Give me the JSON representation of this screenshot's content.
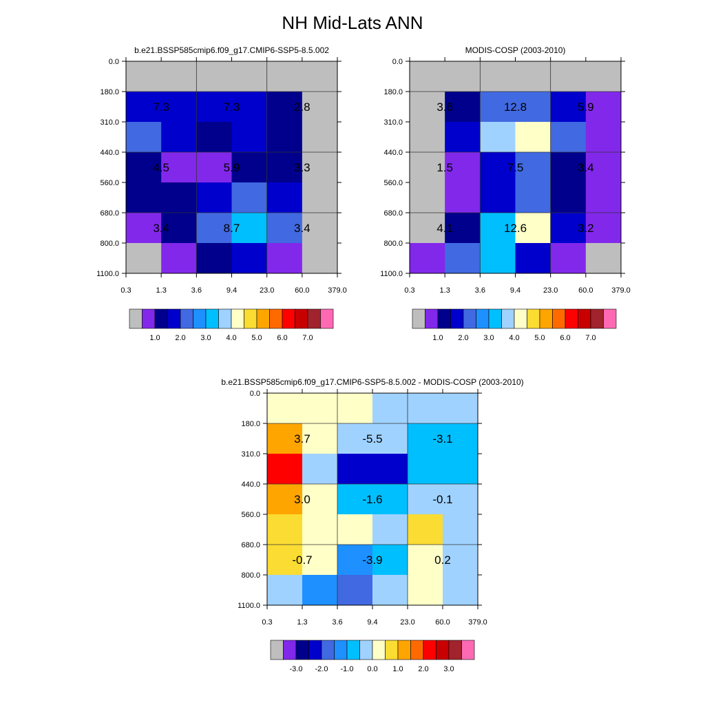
{
  "title": "NH Mid-Lats ANN",
  "palettes": {
    "abs": [
      "#bebebe",
      "#8228eb",
      "#00008c",
      "#0000cd",
      "#4169e1",
      "#1e90ff",
      "#00bfff",
      "#a0d2ff",
      "#ffffc8",
      "#fadc32",
      "#ffa500",
      "#ff6a00",
      "#ff0000",
      "#c80000",
      "#a0232d",
      "#ff69b4"
    ],
    "diff": [
      "#bebebe",
      "#8228eb",
      "#00008c",
      "#0000cd",
      "#4169e1",
      "#1e90ff",
      "#00bfff",
      "#a0d2ff",
      "#ffffc8",
      "#fadc32",
      "#ffa500",
      "#ff6a00",
      "#ff0000",
      "#c80000",
      "#a0232d",
      "#ff69b4"
    ]
  },
  "panels": [
    {
      "id": "model",
      "title": "b.e21.BSSP585cmip6.f09_g17.CMIP6-SSP5-8.5.002",
      "x_ticks": [
        "0.3",
        "1.3",
        "3.6",
        "9.4",
        "23.0",
        "60.0",
        "379.0"
      ],
      "y_ticks": [
        "0.0",
        "180.0",
        "310.0",
        "440.0",
        "560.0",
        "680.0",
        "800.0",
        "1100.0"
      ],
      "colorbar_labels": [
        "1.0",
        "2.0",
        "3.0",
        "4.0",
        "5.0",
        "6.0",
        "7.0"
      ],
      "palette": "abs",
      "grid_colors": [
        [
          0,
          0,
          0,
          0,
          0,
          0
        ],
        [
          3,
          3,
          3,
          3,
          2,
          0
        ],
        [
          4,
          3,
          2,
          3,
          2,
          0
        ],
        [
          2,
          1,
          1,
          2,
          2,
          0
        ],
        [
          2,
          2,
          3,
          4,
          3,
          0
        ],
        [
          1,
          2,
          4,
          6,
          4,
          0
        ],
        [
          0,
          1,
          2,
          3,
          1,
          0
        ]
      ],
      "block_values": [
        [
          "7.3",
          "7.3",
          "2.8"
        ],
        [
          "4.5",
          "5.9",
          "3.3"
        ],
        [
          "3.4",
          "8.7",
          "3.4"
        ]
      ]
    },
    {
      "id": "obs",
      "title": "MODIS-COSP (2003-2010)",
      "x_ticks": [
        "0.3",
        "1.3",
        "3.6",
        "9.4",
        "23.0",
        "60.0",
        "379.0"
      ],
      "y_ticks": [
        "0.0",
        "180.0",
        "310.0",
        "440.0",
        "560.0",
        "680.0",
        "800.0",
        "1100.0"
      ],
      "colorbar_labels": [
        "1.0",
        "2.0",
        "3.0",
        "4.0",
        "5.0",
        "6.0",
        "7.0"
      ],
      "palette": "abs",
      "grid_colors": [
        [
          0,
          0,
          0,
          0,
          0,
          0
        ],
        [
          0,
          2,
          4,
          4,
          3,
          1
        ],
        [
          0,
          3,
          7,
          8,
          4,
          1
        ],
        [
          0,
          1,
          3,
          4,
          2,
          1
        ],
        [
          0,
          1,
          3,
          4,
          2,
          1
        ],
        [
          0,
          2,
          6,
          8,
          3,
          1
        ],
        [
          1,
          4,
          6,
          3,
          1,
          0
        ]
      ],
      "block_values": [
        [
          "3.6",
          "12.8",
          "5.9"
        ],
        [
          "1.5",
          "7.5",
          "3.4"
        ],
        [
          "4.1",
          "12.6",
          "3.2"
        ]
      ]
    },
    {
      "id": "diff",
      "title": "b.e21.BSSP585cmip6.f09_g17.CMIP6-SSP5-8.5.002 - MODIS-COSP (2003-2010)",
      "x_ticks": [
        "0.3",
        "1.3",
        "3.6",
        "9.4",
        "23.0",
        "60.0",
        "379.0"
      ],
      "y_ticks": [
        "0.0",
        "180.0",
        "310.0",
        "440.0",
        "560.0",
        "680.0",
        "800.0",
        "1100.0"
      ],
      "colorbar_labels": [
        "-3.0",
        "-2.0",
        "-1.0",
        "0.0",
        "1.0",
        "2.0",
        "3.0"
      ],
      "palette": "diff",
      "grid_colors": [
        [
          8,
          8,
          8,
          7,
          7,
          7
        ],
        [
          10,
          8,
          7,
          7,
          6,
          6
        ],
        [
          12,
          7,
          3,
          3,
          6,
          6
        ],
        [
          10,
          8,
          6,
          6,
          7,
          7
        ],
        [
          9,
          8,
          8,
          7,
          9,
          7
        ],
        [
          9,
          8,
          5,
          6,
          8,
          7
        ],
        [
          7,
          5,
          4,
          7,
          8,
          7
        ]
      ],
      "block_values": [
        [
          "3.7",
          "-5.5",
          "-3.1"
        ],
        [
          "3.0",
          "-1.6",
          "-0.1"
        ],
        [
          "-0.7",
          "-3.9",
          "0.2"
        ]
      ]
    }
  ],
  "chart_data": [
    {
      "type": "heatmap",
      "title": "b.e21.BSSP585cmip6.f09_g17.CMIP6-SSP5-8.5.002",
      "x_edges": [
        0.3,
        1.3,
        3.6,
        9.4,
        23.0,
        60.0,
        379.0
      ],
      "y_edges": [
        0.0,
        180.0,
        310.0,
        440.0,
        560.0,
        680.0,
        800.0,
        1100.0
      ],
      "block_values": [
        [
          7.3,
          7.3,
          2.8
        ],
        [
          4.5,
          5.9,
          3.3
        ],
        [
          3.4,
          8.7,
          3.4
        ]
      ]
    },
    {
      "type": "heatmap",
      "title": "MODIS-COSP (2003-2010)",
      "x_edges": [
        0.3,
        1.3,
        3.6,
        9.4,
        23.0,
        60.0,
        379.0
      ],
      "y_edges": [
        0.0,
        180.0,
        310.0,
        440.0,
        560.0,
        680.0,
        800.0,
        1100.0
      ],
      "block_values": [
        [
          3.6,
          12.8,
          5.9
        ],
        [
          1.5,
          7.5,
          3.4
        ],
        [
          4.1,
          12.6,
          3.2
        ]
      ]
    },
    {
      "type": "heatmap",
      "title": "b.e21.BSSP585cmip6.f09_g17.CMIP6-SSP5-8.5.002 - MODIS-COSP (2003-2010)",
      "x_edges": [
        0.3,
        1.3,
        3.6,
        9.4,
        23.0,
        60.0,
        379.0
      ],
      "y_edges": [
        0.0,
        180.0,
        310.0,
        440.0,
        560.0,
        680.0,
        800.0,
        1100.0
      ],
      "block_values": [
        [
          3.7,
          -5.5,
          -3.1
        ],
        [
          3.0,
          -1.6,
          -0.1
        ],
        [
          -0.7,
          -3.9,
          0.2
        ]
      ]
    }
  ]
}
